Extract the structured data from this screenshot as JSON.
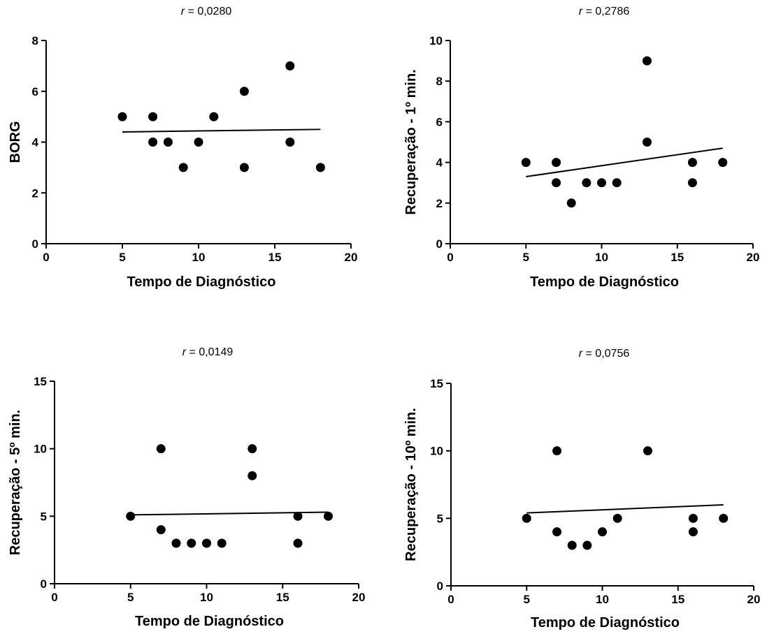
{
  "chart_data": [
    {
      "type": "scatter",
      "title_r_symbol": "r",
      "title_r_value": " = 0,0280",
      "xlabel": "Tempo de Diagnóstico",
      "ylabel": "BORG",
      "xlim": [
        0,
        20
      ],
      "ylim": [
        0,
        8
      ],
      "xticks": [
        "0",
        "5",
        "10",
        "15",
        "20"
      ],
      "yticks": [
        "0",
        "2",
        "4",
        "6",
        "8"
      ],
      "points": [
        [
          5,
          5
        ],
        [
          7,
          5
        ],
        [
          7,
          4
        ],
        [
          8,
          4
        ],
        [
          9,
          3
        ],
        [
          10,
          4
        ],
        [
          11,
          5
        ],
        [
          13,
          6
        ],
        [
          13,
          3
        ],
        [
          16,
          7
        ],
        [
          16,
          4
        ],
        [
          18,
          3
        ]
      ],
      "regression_line": [
        [
          5,
          4.4
        ],
        [
          18,
          4.5
        ]
      ]
    },
    {
      "type": "scatter",
      "title_r_symbol": "r",
      "title_r_value": " = 0,2786",
      "xlabel": "Tempo de Diagnóstico",
      "ylabel": "Recuperação - 1º min.",
      "xlim": [
        0,
        20
      ],
      "ylim": [
        0,
        10
      ],
      "xticks": [
        "0",
        "5",
        "10",
        "15",
        "20"
      ],
      "yticks": [
        "0",
        "2",
        "4",
        "6",
        "8",
        "10"
      ],
      "points": [
        [
          5,
          4
        ],
        [
          7,
          4
        ],
        [
          7,
          3
        ],
        [
          8,
          2
        ],
        [
          9,
          3
        ],
        [
          10,
          3
        ],
        [
          11,
          3
        ],
        [
          13,
          9
        ],
        [
          13,
          5
        ],
        [
          16,
          4
        ],
        [
          16,
          3
        ],
        [
          18,
          4
        ]
      ],
      "regression_line": [
        [
          5,
          3.3
        ],
        [
          18,
          4.7
        ]
      ]
    },
    {
      "type": "scatter",
      "title_r_symbol": "r",
      "title_r_value": " = 0,0149",
      "xlabel": "Tempo de Diagnóstico",
      "ylabel": "Recuperação - 5º min.",
      "xlim": [
        0,
        20
      ],
      "ylim": [
        0,
        15
      ],
      "xticks": [
        "0",
        "5",
        "10",
        "15",
        "20"
      ],
      "yticks": [
        "0",
        "5",
        "10",
        "15"
      ],
      "points": [
        [
          5,
          5
        ],
        [
          7,
          10
        ],
        [
          7,
          4
        ],
        [
          8,
          3
        ],
        [
          9,
          3
        ],
        [
          10,
          3
        ],
        [
          11,
          3
        ],
        [
          13,
          10
        ],
        [
          13,
          8
        ],
        [
          16,
          5
        ],
        [
          16,
          3
        ],
        [
          18,
          5
        ]
      ],
      "regression_line": [
        [
          5,
          5.1
        ],
        [
          18,
          5.3
        ]
      ]
    },
    {
      "type": "scatter",
      "title_r_symbol": "r",
      "title_r_value": " = 0,0756",
      "xlabel": "Tempo de Diagnóstico",
      "ylabel": "Recuperação - 10º min.",
      "xlim": [
        0,
        20
      ],
      "ylim": [
        0,
        15
      ],
      "xticks": [
        "0",
        "5",
        "10",
        "15",
        "20"
      ],
      "yticks": [
        "0",
        "5",
        "10",
        "15"
      ],
      "points": [
        [
          5,
          5
        ],
        [
          7,
          10
        ],
        [
          7,
          4
        ],
        [
          8,
          3
        ],
        [
          9,
          3
        ],
        [
          10,
          4
        ],
        [
          11,
          5
        ],
        [
          13,
          10
        ],
        [
          16,
          5
        ],
        [
          16,
          4
        ],
        [
          18,
          5
        ]
      ],
      "regression_line": [
        [
          5,
          5.4
        ],
        [
          18,
          6.0
        ]
      ]
    }
  ],
  "colors": {
    "marker": "#000000",
    "line": "#000000",
    "background": "#ffffff"
  }
}
